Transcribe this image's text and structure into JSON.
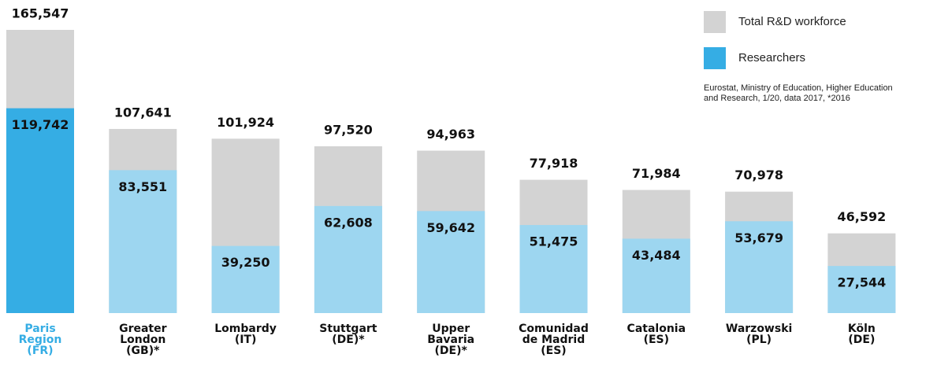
{
  "chart_data": {
    "type": "overlap_bar",
    "categories": [
      "Paris\nRegion\n(FR)",
      "Greater\nLondon\n(GB)*",
      "Lombardy\n(IT)",
      "Stuttgart\n(DE)*",
      "Upper\nBavaria\n(DE)*",
      "Comunidad\nde Madrid\n(ES)",
      "Catalonia\n(ES)",
      "Warzowski\n(PL)",
      "Köln\n(DE)"
    ],
    "label_colors": [
      "#35ade4",
      "#111111",
      "#111111",
      "#111111",
      "#111111",
      "#111111",
      "#111111",
      "#111111",
      "#111111"
    ],
    "series": [
      {
        "name": "Total R&D workforce",
        "color": "#d3d3d3",
        "values": [
          165547,
          107641,
          101924,
          97520,
          94963,
          77918,
          71984,
          70978,
          46592
        ],
        "value_labels": [
          "165,547",
          "107,641",
          "101,924",
          "97,520",
          "94,963",
          "77,918",
          "71,984",
          "70,978",
          "46,592"
        ]
      },
      {
        "name": "Researchers",
        "color": "#35ade4",
        "colors": [
          "#35ade4",
          "#9dd6f0",
          "#9dd6f0",
          "#9dd6f0",
          "#9dd6f0",
          "#9dd6f0",
          "#9dd6f0",
          "#9dd6f0",
          "#9dd6f0"
        ],
        "values": [
          119742,
          83551,
          39250,
          62608,
          59642,
          51475,
          43484,
          53679,
          27544
        ],
        "value_labels": [
          "119,742",
          "83,551",
          "39,250",
          "62,608",
          "59,642",
          "51,475",
          "43,484",
          "53,679",
          "27,544"
        ]
      }
    ],
    "note": [
      "Eurostat, Ministry of Education, Higher Education",
      "and Research, 1/20, data 2017, *2016"
    ],
    "legend": "top-right"
  }
}
